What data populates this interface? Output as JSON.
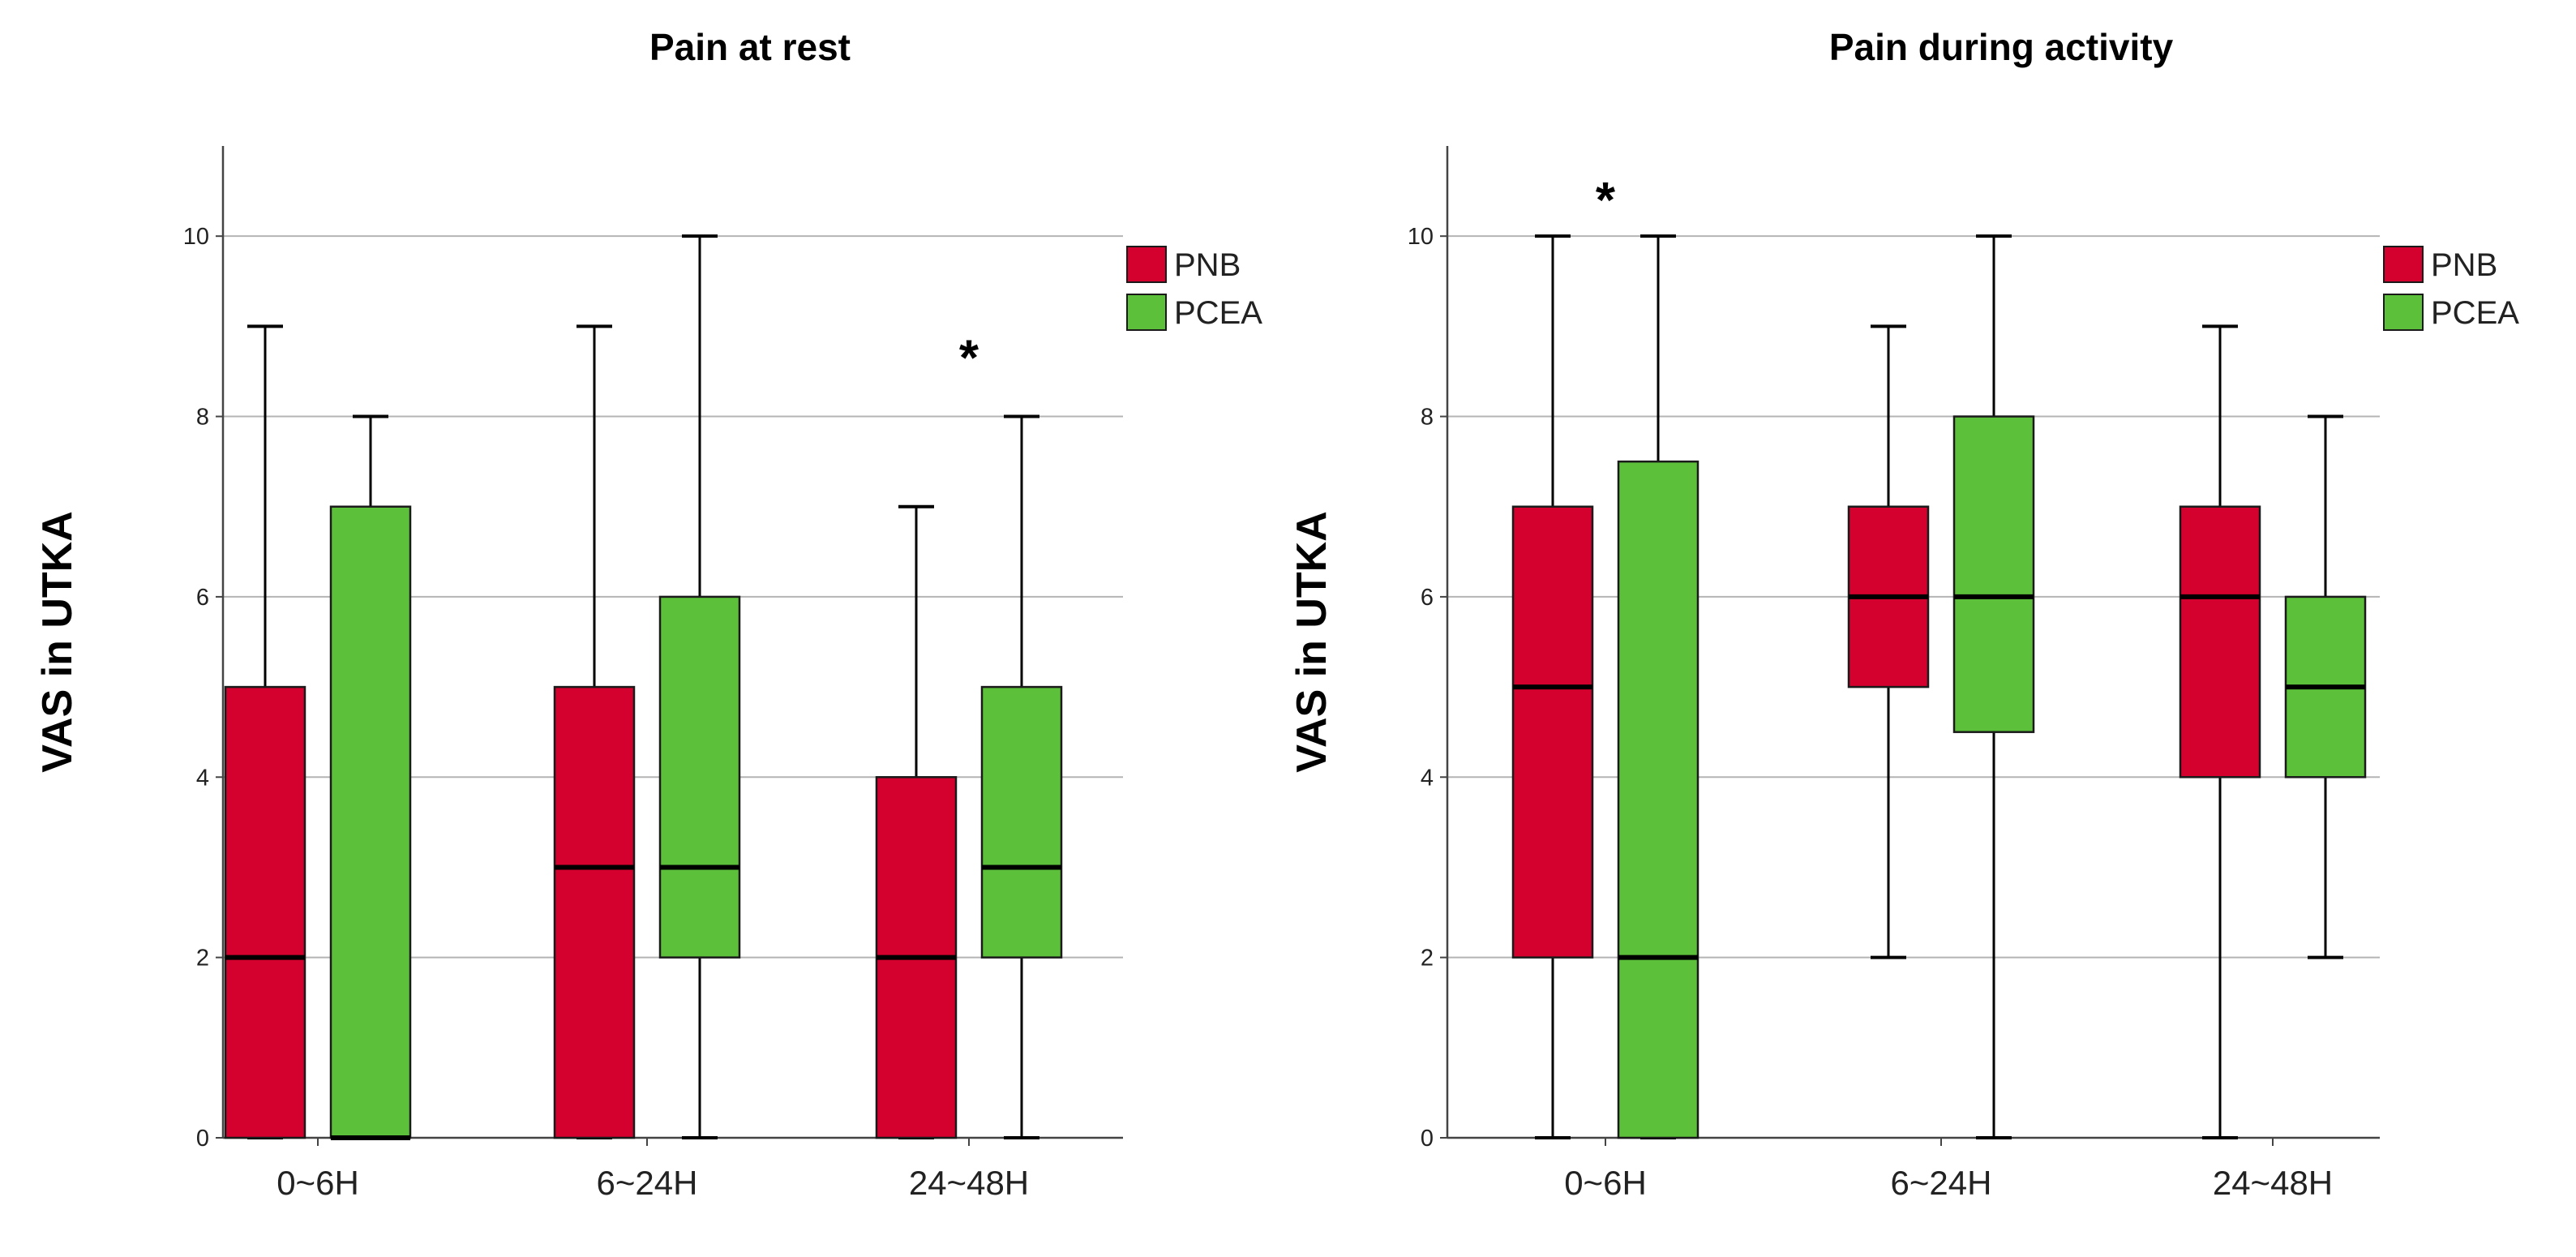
{
  "chart_data": [
    {
      "type": "box",
      "title": "Pain at rest",
      "xlabel": "",
      "ylabel": "VAS in UTKA",
      "ylim": [
        0,
        11
      ],
      "yticks": [
        0,
        2,
        4,
        6,
        8,
        10
      ],
      "grid": true,
      "legend_position": "top-right",
      "categories": [
        "0~6H",
        "6~24H",
        "24~48H"
      ],
      "series": [
        {
          "name": "PNB",
          "color": "#d4002d",
          "boxes": [
            {
              "min": 0,
              "q1": 0,
              "median": 2,
              "q3": 5,
              "max": 9
            },
            {
              "min": 0,
              "q1": 0,
              "median": 3,
              "q3": 5,
              "max": 9
            },
            {
              "min": 0,
              "q1": 0,
              "median": 2,
              "q3": 4,
              "max": 7
            }
          ]
        },
        {
          "name": "PCEA",
          "color": "#5cc03a",
          "boxes": [
            {
              "min": 0,
              "q1": 0,
              "median": 0,
              "q3": 7,
              "max": 8
            },
            {
              "min": 0,
              "q1": 2,
              "median": 3,
              "q3": 6,
              "max": 10
            },
            {
              "min": 0,
              "q1": 2,
              "median": 3,
              "q3": 5,
              "max": 8
            }
          ]
        }
      ],
      "annotations": [
        {
          "text": "*",
          "category": "24~48H",
          "y": 8.8
        }
      ]
    },
    {
      "type": "box",
      "title": "Pain during activity",
      "xlabel": "",
      "ylabel": "VAS in UTKA",
      "ylim": [
        0,
        11
      ],
      "yticks": [
        0,
        2,
        4,
        6,
        8,
        10
      ],
      "grid": true,
      "legend_position": "top-right",
      "categories": [
        "0~6H",
        "6~24H",
        "24~48H"
      ],
      "series": [
        {
          "name": "PNB",
          "color": "#d4002d",
          "boxes": [
            {
              "min": 0,
              "q1": 2,
              "median": 5,
              "q3": 7,
              "max": 10
            },
            {
              "min": 2,
              "q1": 5,
              "median": 6,
              "q3": 7,
              "max": 9
            },
            {
              "min": 0,
              "q1": 4,
              "median": 6,
              "q3": 7,
              "max": 9
            }
          ]
        },
        {
          "name": "PCEA",
          "color": "#5cc03a",
          "boxes": [
            {
              "min": 0,
              "q1": 0,
              "median": 2,
              "q3": 7.5,
              "max": 10
            },
            {
              "min": 0,
              "q1": 4.5,
              "median": 6,
              "q3": 8,
              "max": 10
            },
            {
              "min": 2,
              "q1": 4,
              "median": 5,
              "q3": 6,
              "max": 8
            }
          ]
        }
      ],
      "annotations": [
        {
          "text": "*",
          "category": "0~6H",
          "y": 10.55
        }
      ]
    }
  ]
}
